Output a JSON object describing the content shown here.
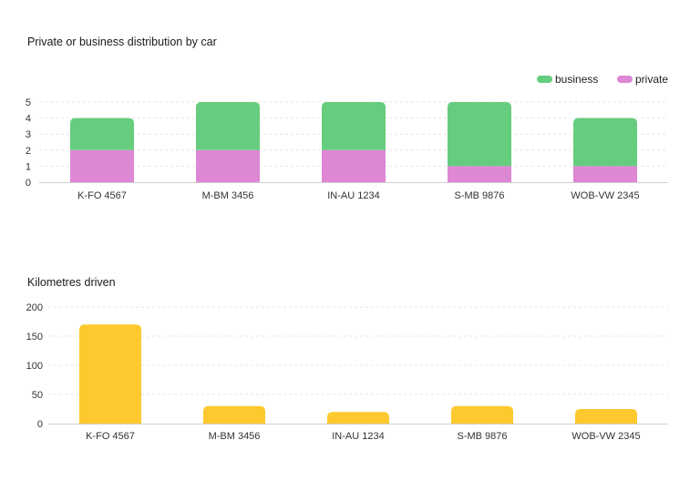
{
  "charts": [
    {
      "id": "stacked",
      "title": "Private or business distribution by car"
    },
    {
      "id": "km",
      "title": "Kilometres driven"
    }
  ],
  "colors": {
    "business": "#66cd7e",
    "private": "#dd87d5",
    "km": "#fdc92f",
    "grid": "#e6e6e6",
    "axis": "#cfcfcf"
  },
  "chart_data": [
    {
      "type": "bar",
      "stacked": true,
      "title": "Private or business distribution by car",
      "categories": [
        "K-FO 4567",
        "M-BM 3456",
        "IN-AU 1234",
        "S-MB 9876",
        "WOB-VW 2345"
      ],
      "series": [
        {
          "name": "private",
          "values": [
            2,
            2,
            2,
            1,
            1
          ]
        },
        {
          "name": "business",
          "values": [
            2,
            3,
            3,
            4,
            3
          ]
        }
      ],
      "legend": [
        "business",
        "private"
      ],
      "legend_position": "top-right",
      "ylim": [
        0,
        5
      ],
      "yticks": [
        0,
        1,
        2,
        3,
        4,
        5
      ],
      "xlabel": "",
      "ylabel": ""
    },
    {
      "type": "bar",
      "title": "Kilometres driven",
      "categories": [
        "K-FO 4567",
        "M-BM 3456",
        "IN-AU 1234",
        "S-MB 9876",
        "WOB-VW 2345"
      ],
      "values": [
        170,
        30,
        20,
        30,
        25
      ],
      "ylim": [
        0,
        200
      ],
      "yticks": [
        0,
        50,
        100,
        150,
        200
      ],
      "xlabel": "",
      "ylabel": ""
    }
  ]
}
